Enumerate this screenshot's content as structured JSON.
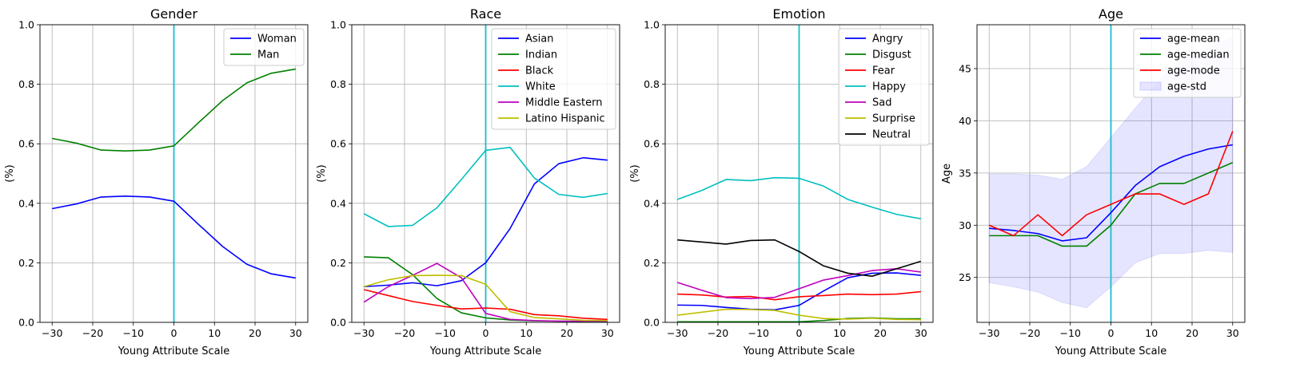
{
  "chart_data": [
    {
      "type": "line",
      "title": "Gender",
      "xlabel": "Young Attribute Scale",
      "ylabel": "(%)",
      "xlim": [
        -33,
        33
      ],
      "ylim": [
        0,
        1
      ],
      "xticks": [
        -30,
        -20,
        -10,
        0,
        10,
        20,
        30
      ],
      "yticks": [
        0,
        0.2,
        0.4,
        0.6,
        0.8,
        1
      ],
      "ytick_labels": [
        "0.0",
        "0.2",
        "0.4",
        "0.6",
        "0.8",
        "1.0"
      ],
      "grid": true,
      "legend": "top-right",
      "vline": {
        "x": 0,
        "color": "#17becf"
      },
      "x": [
        -30,
        -24,
        -18,
        -12,
        -6,
        0,
        6,
        12,
        18,
        24,
        30
      ],
      "series": [
        {
          "name": "Woman",
          "color": "#0000ff",
          "values": [
            0.382,
            0.398,
            0.421,
            0.424,
            0.421,
            0.407,
            0.33,
            0.255,
            0.195,
            0.163,
            0.149
          ]
        },
        {
          "name": "Man",
          "color": "#008000",
          "values": [
            0.618,
            0.602,
            0.579,
            0.576,
            0.579,
            0.593,
            0.67,
            0.745,
            0.805,
            0.837,
            0.851
          ]
        }
      ]
    },
    {
      "type": "line",
      "title": "Race",
      "xlabel": "Young Attribute Scale",
      "ylabel": "(%)",
      "xlim": [
        -33,
        33
      ],
      "ylim": [
        0,
        1
      ],
      "xticks": [
        -30,
        -20,
        -10,
        0,
        10,
        20,
        30
      ],
      "yticks": [
        0,
        0.2,
        0.4,
        0.6,
        0.8,
        1
      ],
      "ytick_labels": [
        "0.0",
        "0.2",
        "0.4",
        "0.6",
        "0.8",
        "1.0"
      ],
      "grid": true,
      "legend": "top-right",
      "vline": {
        "x": 0,
        "color": "#17becf"
      },
      "x": [
        -30,
        -24,
        -18,
        -12,
        -6,
        0,
        6,
        12,
        18,
        24,
        30
      ],
      "series": [
        {
          "name": "Asian",
          "color": "#0000ff",
          "values": [
            0.12,
            0.125,
            0.133,
            0.123,
            0.14,
            0.2,
            0.315,
            0.465,
            0.533,
            0.553,
            0.545
          ]
        },
        {
          "name": "Indian",
          "color": "#008000",
          "values": [
            0.22,
            0.217,
            0.16,
            0.08,
            0.032,
            0.015,
            0.008,
            0.005,
            0.004,
            0.003,
            0.003
          ]
        },
        {
          "name": "Black",
          "color": "#ff0000",
          "values": [
            0.11,
            0.09,
            0.07,
            0.057,
            0.045,
            0.048,
            0.044,
            0.026,
            0.022,
            0.014,
            0.01
          ]
        },
        {
          "name": "White",
          "color": "#00bfbf",
          "values": [
            0.365,
            0.322,
            0.326,
            0.385,
            0.48,
            0.578,
            0.588,
            0.485,
            0.43,
            0.42,
            0.433
          ]
        },
        {
          "name": "Middle Eastern",
          "color": "#bf00bf",
          "values": [
            0.068,
            0.12,
            0.158,
            0.198,
            0.15,
            0.03,
            0.01,
            0.006,
            0.004,
            0.004,
            0.004
          ]
        },
        {
          "name": "Latino Hispanic",
          "color": "#bfbf00",
          "values": [
            0.12,
            0.143,
            0.157,
            0.158,
            0.157,
            0.128,
            0.036,
            0.016,
            0.012,
            0.007,
            0.006
          ]
        }
      ]
    },
    {
      "type": "line",
      "title": "Emotion",
      "xlabel": "Young Attribute Scale",
      "ylabel": "(%)",
      "xlim": [
        -33,
        33
      ],
      "ylim": [
        0,
        1
      ],
      "xticks": [
        -30,
        -20,
        -10,
        0,
        10,
        20,
        30
      ],
      "yticks": [
        0,
        0.2,
        0.4,
        0.6,
        0.8,
        1
      ],
      "ytick_labels": [
        "0.0",
        "0.2",
        "0.4",
        "0.6",
        "0.8",
        "1.0"
      ],
      "grid": true,
      "legend": "top-right",
      "vline": {
        "x": 0,
        "color": "#17becf"
      },
      "x": [
        -30,
        -24,
        -18,
        -12,
        -6,
        0,
        6,
        12,
        18,
        24,
        30
      ],
      "series": [
        {
          "name": "Angry",
          "color": "#0000ff",
          "values": [
            0.058,
            0.057,
            0.05,
            0.044,
            0.042,
            0.057,
            0.105,
            0.15,
            0.165,
            0.166,
            0.158
          ]
        },
        {
          "name": "Disgust",
          "color": "#008000",
          "values": [
            0.002,
            0.002,
            0.002,
            0.002,
            0.002,
            0.002,
            0.006,
            0.013,
            0.015,
            0.012,
            0.012
          ]
        },
        {
          "name": "Fear",
          "color": "#ff0000",
          "values": [
            0.095,
            0.092,
            0.085,
            0.087,
            0.076,
            0.086,
            0.09,
            0.095,
            0.093,
            0.095,
            0.103
          ]
        },
        {
          "name": "Happy",
          "color": "#00bfbf",
          "values": [
            0.413,
            0.443,
            0.48,
            0.476,
            0.486,
            0.484,
            0.458,
            0.413,
            0.387,
            0.363,
            0.348
          ]
        },
        {
          "name": "Sad",
          "color": "#bf00bf",
          "values": [
            0.134,
            0.108,
            0.083,
            0.08,
            0.084,
            0.113,
            0.142,
            0.157,
            0.174,
            0.18,
            0.169
          ]
        },
        {
          "name": "Surprise",
          "color": "#bfbf00",
          "values": [
            0.024,
            0.034,
            0.044,
            0.043,
            0.04,
            0.024,
            0.013,
            0.011,
            0.014,
            0.01,
            0.009
          ]
        },
        {
          "name": "Neutral",
          "color": "#000000",
          "values": [
            0.277,
            0.27,
            0.263,
            0.275,
            0.277,
            0.238,
            0.19,
            0.165,
            0.155,
            0.18,
            0.205
          ]
        }
      ]
    },
    {
      "type": "line",
      "title": "Age",
      "xlabel": "Young Attribute Scale",
      "ylabel": "Age",
      "xlim": [
        -33,
        33
      ],
      "ylim": [
        20.7,
        49.2
      ],
      "xticks": [
        -30,
        -20,
        -10,
        0,
        10,
        20,
        30
      ],
      "yticks": [
        25,
        30,
        35,
        40,
        45
      ],
      "ytick_labels": [
        "25",
        "30",
        "35",
        "40",
        "45"
      ],
      "grid": true,
      "legend": "top-right",
      "vline": {
        "x": 0,
        "color": "#17becf"
      },
      "x": [
        -30,
        -24,
        -18,
        -12,
        -6,
        0,
        6,
        12,
        18,
        24,
        30
      ],
      "series": [
        {
          "name": "age-mean",
          "color": "#0000ff",
          "values": [
            29.7,
            29.5,
            29.2,
            28.5,
            28.8,
            31.2,
            33.8,
            35.6,
            36.6,
            37.3,
            37.7
          ]
        },
        {
          "name": "age-median",
          "color": "#008000",
          "values": [
            29.0,
            29.0,
            29.0,
            28.0,
            28.0,
            30.0,
            33.0,
            34.0,
            34.0,
            35.0,
            36.0
          ]
        },
        {
          "name": "age-mode",
          "color": "#ff0000",
          "values": [
            30.0,
            29.0,
            31.0,
            29.0,
            31.0,
            32.0,
            33.0,
            33.0,
            32.0,
            33.0,
            39.0
          ]
        }
      ],
      "band": {
        "name": "age-std",
        "color": "#0000ff",
        "lower": [
          24.5,
          24.1,
          23.6,
          22.6,
          22.1,
          24.1,
          26.4,
          27.3,
          27.3,
          27.6,
          27.4
        ],
        "upper": [
          34.9,
          34.9,
          34.8,
          34.4,
          35.6,
          38.4,
          41.2,
          43.9,
          45.9,
          47.0,
          48.0
        ]
      }
    }
  ]
}
